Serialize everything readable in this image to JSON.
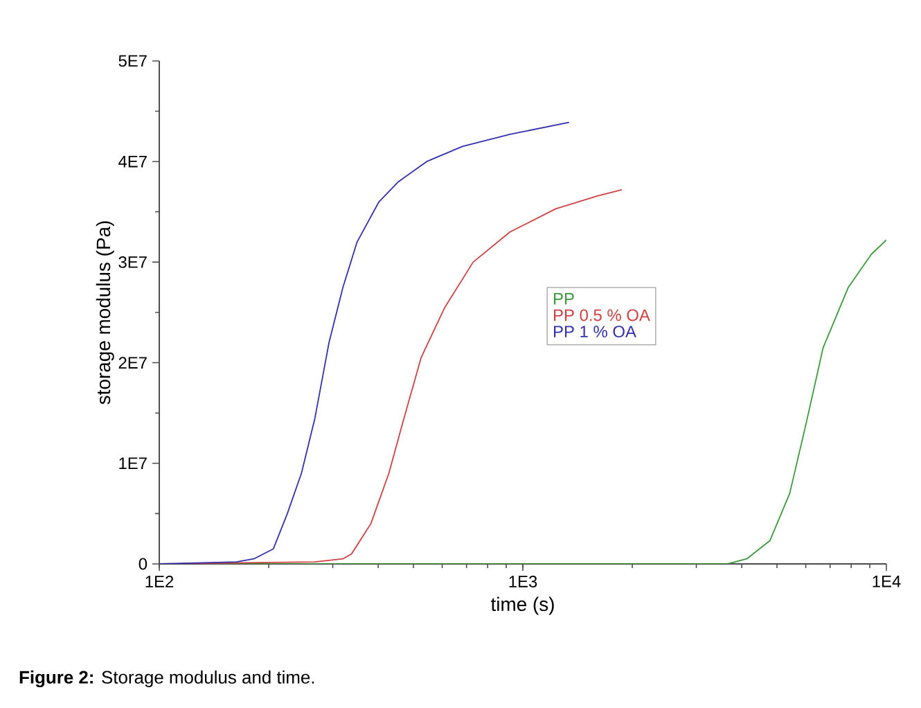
{
  "chart_data": {
    "type": "line",
    "xlabel": "time (s)",
    "ylabel": "storage modulus (Pa)",
    "log": "x",
    "legend": "center",
    "xlim": [
      100,
      10000
    ],
    "ylim": [
      0,
      50000000
    ],
    "xticks": [
      {
        "value": 100,
        "label": "1E2"
      },
      {
        "value": 1000,
        "label": "1E3"
      },
      {
        "value": 10000,
        "label": "1E4"
      }
    ],
    "yticks": [
      0,
      {
        "value": 10000000,
        "label": "1E7"
      },
      {
        "value": 20000000,
        "label": "2E7"
      },
      {
        "value": 30000000,
        "label": "3E7"
      },
      {
        "value": 40000000,
        "label": "4E7"
      },
      {
        "value": 50000000,
        "label": "5E7"
      }
    ],
    "annotations": [
      "**Figure 2:** Storage modulus and time."
    ],
    "series": [
      {
        "name": "PP",
        "color": "#3a9a3a",
        "x": [
          100,
          1000,
          3660,
          4130,
          4780,
          5420,
          6000,
          6700,
          7860,
          9100,
          10000
        ],
        "values": [
          0,
          0,
          0,
          500000,
          2300000,
          7000000,
          13800000,
          21500000,
          27500000,
          30800000,
          32200000
        ]
      },
      {
        "name": "PP 0.5 % OA",
        "color": "#d04040",
        "x": [
          100,
          268,
          320,
          338,
          382,
          428,
          467,
          525,
          610,
          730,
          922,
          1232,
          1610,
          1873
        ],
        "values": [
          0,
          200000,
          500000,
          1000000,
          4000000,
          9000000,
          14000000,
          20500000,
          25500000,
          30000000,
          33000000,
          35300000,
          36600000,
          37200000
        ]
      },
      {
        "name": "PP 1 % OA",
        "color": "#3030b0",
        "x": [
          100,
          163,
          182,
          206,
          225,
          246,
          268,
          293,
          320,
          350,
          402,
          455,
          544,
          682,
          922,
          1340
        ],
        "values": [
          0,
          200000,
          500000,
          1500000,
          5000000,
          9000000,
          14500000,
          22000000,
          27500000,
          32000000,
          36000000,
          38000000,
          40000000,
          41500000,
          42700000,
          43900000
        ]
      }
    ]
  }
}
